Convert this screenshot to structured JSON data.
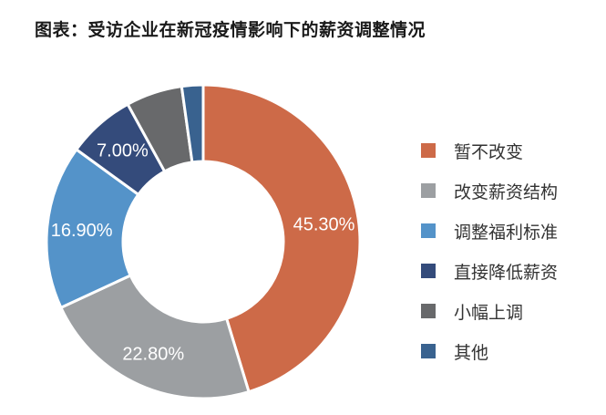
{
  "title": "图表：受访企业在新冠疫情影响下的薪资调整情况",
  "chart_data": {
    "type": "pie",
    "title": "图表：受访企业在新冠疫情影响下的薪资调整情况",
    "subtype": "donut",
    "categories": [
      "暂不改变",
      "改变薪资结构",
      "调整福利标准",
      "直接降低薪资",
      "小幅上调",
      "其他"
    ],
    "values": [
      45.3,
      22.8,
      16.9,
      7.0,
      5.8,
      2.2
    ],
    "labels": [
      "45.30%",
      "22.80%",
      "16.90%",
      "7.00%",
      "",
      ""
    ],
    "colors": [
      "#CD6A48",
      "#9C9FA2",
      "#5493C9",
      "#344B7B",
      "#68696B",
      "#39628F"
    ],
    "legend_position": "right",
    "unit": "%"
  },
  "legend": [
    {
      "label": "暂不改变",
      "color": "#CD6A48"
    },
    {
      "label": "改变薪资结构",
      "color": "#9C9FA2"
    },
    {
      "label": "调整福利标准",
      "color": "#5493C9"
    },
    {
      "label": "直接降低薪资",
      "color": "#344B7B"
    },
    {
      "label": "小幅上调",
      "color": "#68696B"
    },
    {
      "label": "其他",
      "color": "#39628F"
    }
  ]
}
